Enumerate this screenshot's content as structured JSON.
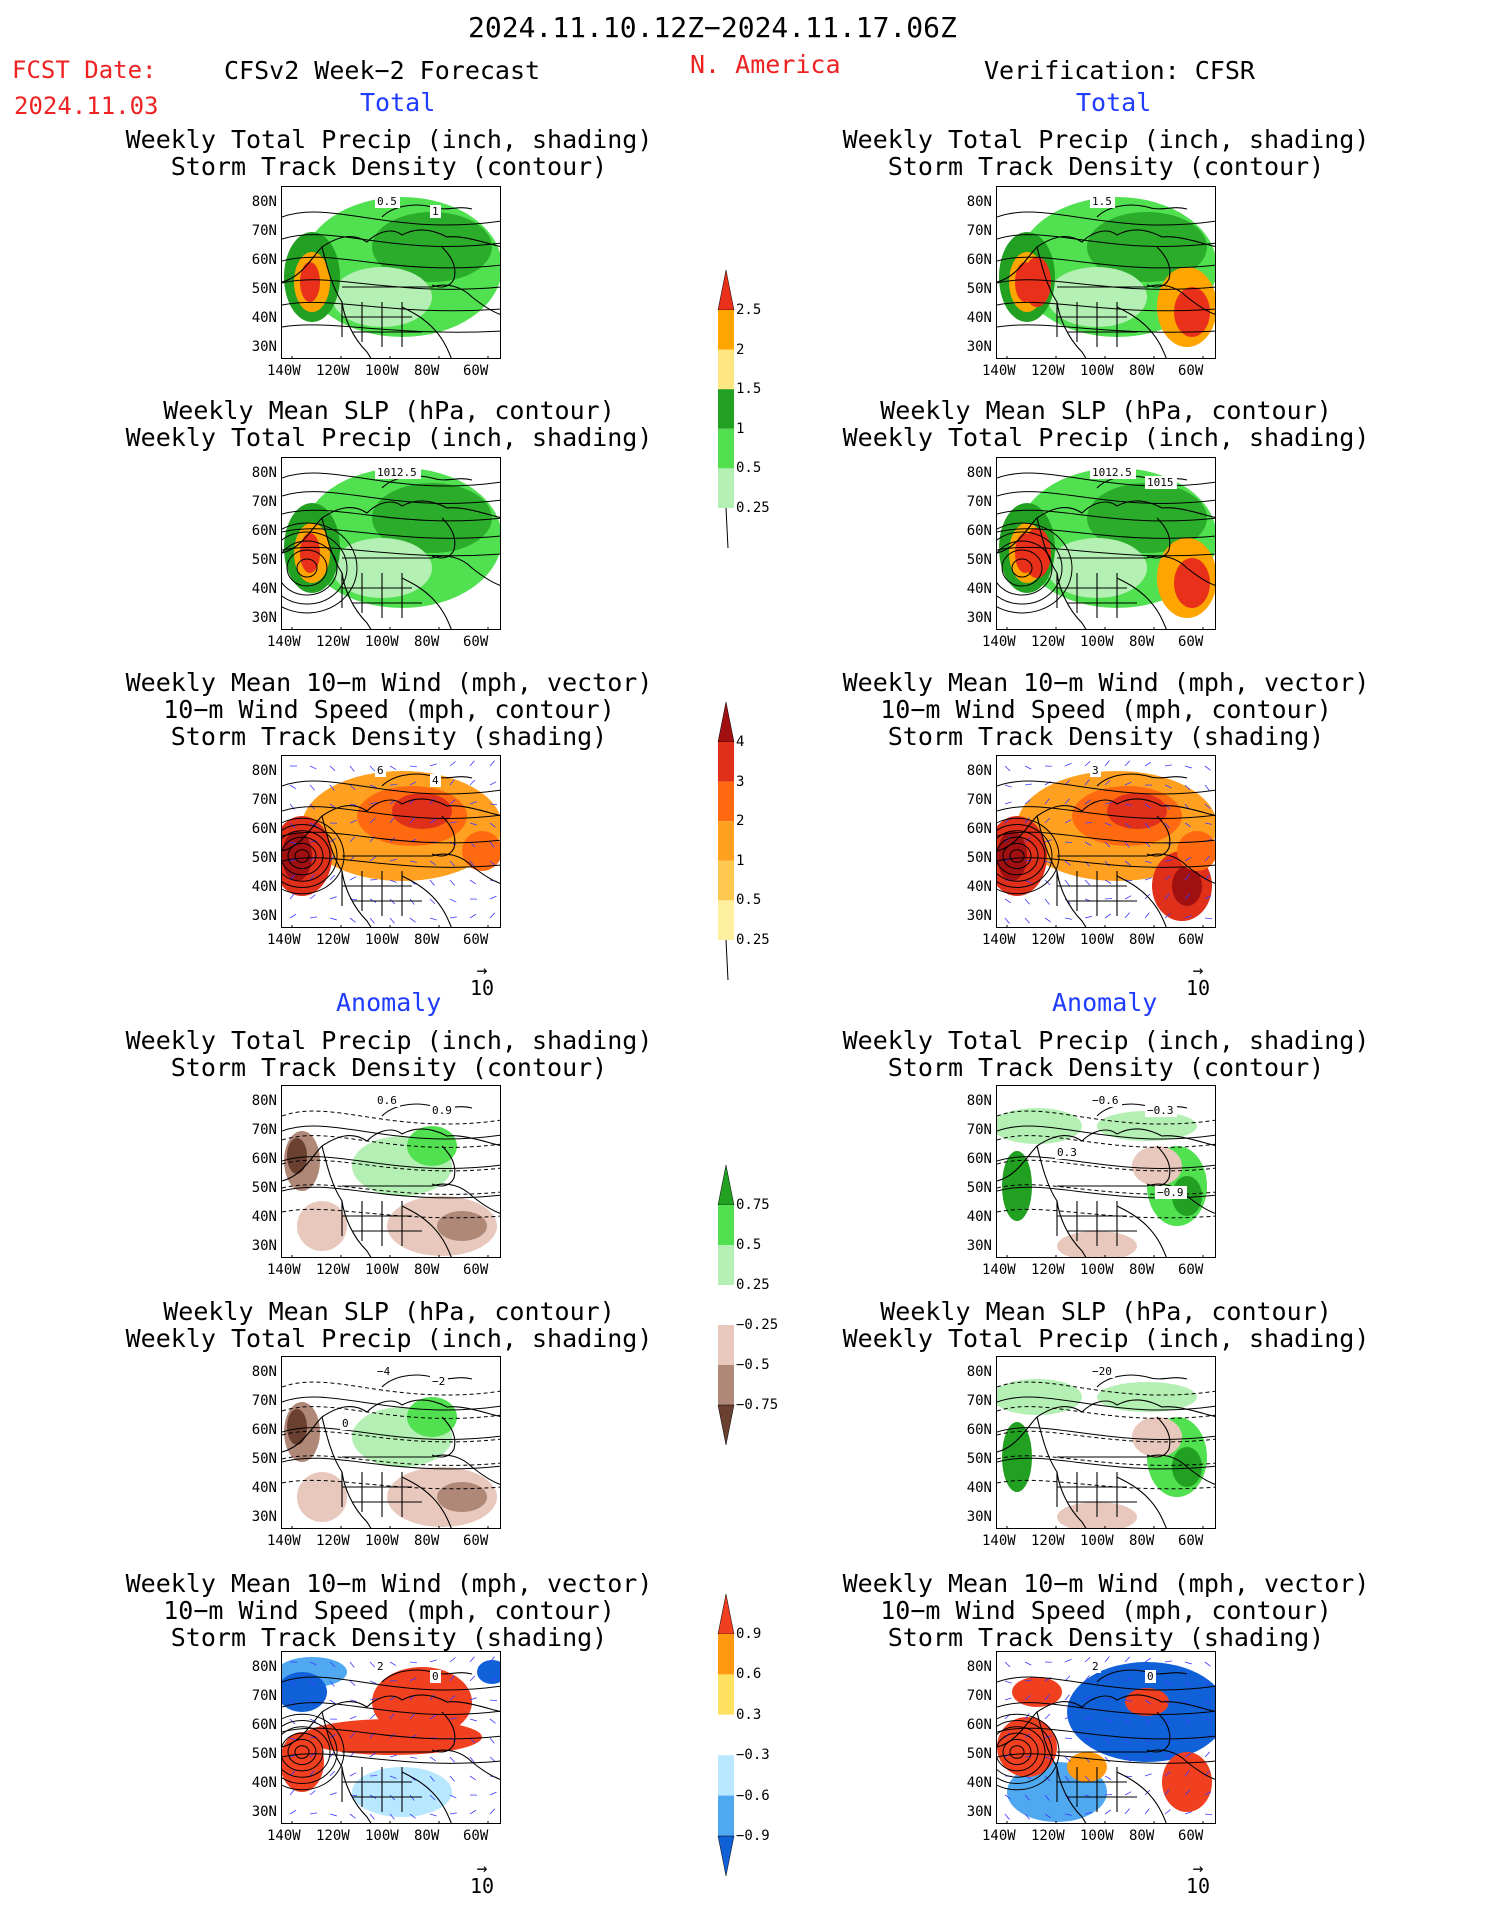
{
  "header": {
    "period": "2024.11.10.12Z−2024.11.17.06Z",
    "fcst_label": "FCST Date:",
    "fcst_date": "2024.11.03",
    "forecast_name": "CFSv2 Week−2 Forecast",
    "region": "N. America",
    "verification": "Verification: CFSR"
  },
  "sections": {
    "total": "Total",
    "anomaly": "Anomaly"
  },
  "panel_titles": {
    "precip_storm": [
      "Weekly Total Precip (inch, shading)",
      "Storm Track Density (contour)"
    ],
    "slp_precip": [
      "Weekly Mean SLP (hPa, contour)",
      "Weekly Total Precip (inch, shading)"
    ],
    "wind_storm": [
      "Weekly Mean 10−m Wind (mph, vector)",
      "10−m Wind Speed (mph, contour)",
      "Storm Track Density (shading)"
    ]
  },
  "axes": {
    "lat_labels": [
      "80N",
      "70N",
      "60N",
      "50N",
      "40N",
      "30N"
    ],
    "lon_labels": [
      "140W",
      "120W",
      "100W",
      "80W",
      "60W"
    ]
  },
  "map_labels": {
    "fc_total_precip": [
      "0.5",
      "1"
    ],
    "vf_total_precip": [
      "1.5"
    ],
    "fc_total_slp": [
      "1012.5"
    ],
    "vf_total_slp": [
      "1012.5",
      "1015"
    ],
    "fc_total_wind": [
      "6",
      "4"
    ],
    "vf_total_wind": [
      "3"
    ],
    "fc_anom_precip": [
      "0.6",
      "0.9"
    ],
    "vf_anom_precip": [
      "−0.6",
      "−0.3",
      "0.3",
      "−0.9"
    ],
    "fc_anom_slp": [
      "−4",
      "−2",
      "0"
    ],
    "vf_anom_slp": [
      "−20"
    ],
    "fc_anom_wind": [
      "2",
      "0"
    ],
    "vf_anom_wind": [
      "2",
      "0"
    ]
  },
  "vector_reference": "10",
  "colorbars": {
    "total_precip": {
      "labels": [
        "2.5",
        "2",
        "1.5",
        "1",
        "0.5",
        "0.25"
      ],
      "colors": [
        "#e8301a",
        "#ffa500",
        "#ffe680",
        "#22a022",
        "#50e050",
        "#b4f0b4"
      ]
    },
    "total_storm": {
      "labels": [
        "4",
        "3",
        "2",
        "1",
        "0.5",
        "0.25"
      ],
      "colors": [
        "#a01010",
        "#e0301a",
        "#ff6a10",
        "#ffa020",
        "#ffc850",
        "#fff0a0"
      ]
    },
    "anom_precip": {
      "labels": [
        "0.75",
        "0.5",
        "0.25",
        "−0.25",
        "−0.5",
        "−0.75"
      ],
      "colors": [
        "#22a022",
        "#50e050",
        "#b4f0b4",
        "#ffffff",
        "#e8c8bc",
        "#b08878",
        "#6a4030"
      ]
    },
    "anom_storm": {
      "labels": [
        "0.9",
        "0.6",
        "0.3",
        "−0.3",
        "−0.6",
        "−0.9"
      ],
      "colors": [
        "#f04020",
        "#ff9a10",
        "#ffe060",
        "#ffffff",
        "#b8e8ff",
        "#50a8f0",
        "#1060d8"
      ]
    }
  }
}
